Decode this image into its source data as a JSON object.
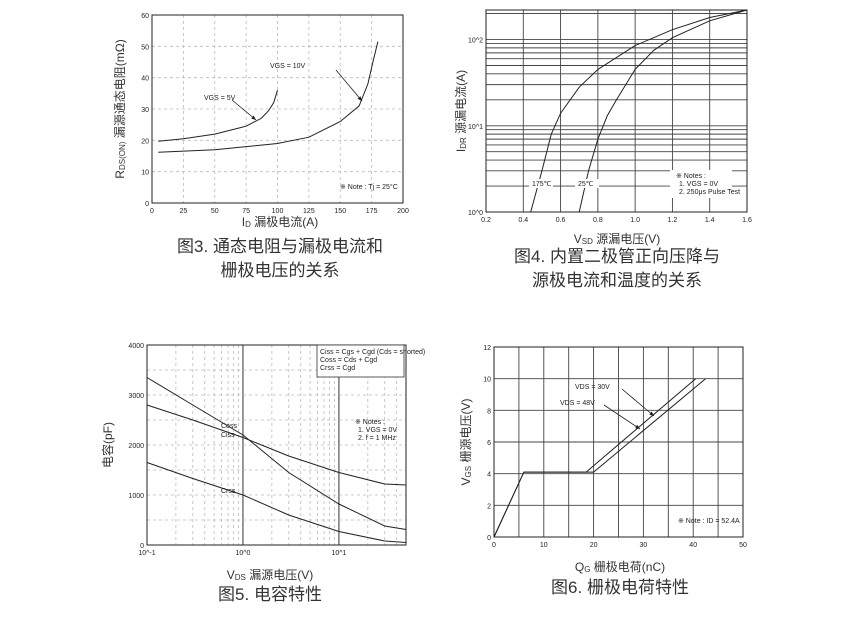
{
  "chart_data": [
    {
      "type": "line",
      "caption": [
        "图3. 通态电阻与漏极电流和",
        "栅极电压的关系"
      ],
      "xlabel": {
        "sym": "I",
        "sub": "D",
        "text": " 漏极电流(A)"
      },
      "ylabel": {
        "sym": "R",
        "sub": "DS(ON)",
        "text": " 漏源通态电阻(mΩ)"
      },
      "xscale": "linear",
      "yscale": "linear",
      "xlim": [
        0,
        200
      ],
      "ylim": [
        0,
        60
      ],
      "xticks": [
        0,
        25,
        50,
        75,
        100,
        125,
        150,
        175,
        200
      ],
      "xtick_labels": [
        "0",
        "25",
        "50",
        "75",
        "100",
        "125",
        "150",
        "175",
        "200"
      ],
      "yticks": [
        0,
        10,
        20,
        30,
        40,
        50,
        60
      ],
      "ytick_labels": [
        "0",
        "10",
        "20",
        "30",
        "40",
        "50",
        "60"
      ],
      "grid": "dashed",
      "note": "※ Note : Tj = 25°C",
      "series": [
        {
          "name": "VGS = 5V",
          "x": [
            5,
            25,
            50,
            75,
            87,
            93,
            97,
            100
          ],
          "y": [
            19.7,
            20.5,
            22,
            24.5,
            27,
            29.5,
            32,
            36
          ]
        },
        {
          "name": "VGS = 10V",
          "x": [
            5,
            50,
            100,
            125,
            150,
            165,
            172,
            176,
            180
          ],
          "y": [
            16.2,
            17,
            19,
            21,
            26,
            31,
            38,
            45,
            51.5
          ]
        }
      ]
    },
    {
      "type": "line",
      "caption": [
        "图4. 内置二极管正向压降与",
        "源极电流和温度的关系"
      ],
      "xlabel": {
        "sym": "V",
        "sub": "SD",
        "text": " 源漏电压(V)"
      },
      "ylabel": {
        "sym": "I",
        "sub": "DR",
        "text": " 源漏电流(A)"
      },
      "xscale": "linear",
      "yscale": "log",
      "xlim": [
        0.2,
        1.6
      ],
      "ylim": [
        1,
        220
      ],
      "xticks": [
        0.2,
        0.4,
        0.6,
        0.8,
        1.0,
        1.2,
        1.4,
        1.6
      ],
      "xtick_labels": [
        "0.2",
        "0.4",
        "0.6",
        "0.8",
        "1.0",
        "1.2",
        "1.4",
        "1.6"
      ],
      "yticks": [
        1,
        10,
        100
      ],
      "ytick_labels": [
        "10^0",
        "10^1",
        "10^2"
      ],
      "grid": "solid",
      "note": [
        "※ Notes :",
        "1. VGS = 0V",
        "2. 250μs Pulse Test"
      ],
      "series": [
        {
          "name": "175℃",
          "x": [
            0.44,
            0.5,
            0.55,
            0.6,
            0.7,
            0.8,
            1.0,
            1.2,
            1.4,
            1.6
          ],
          "y": [
            1,
            3,
            8,
            14,
            28,
            45,
            85,
            130,
            180,
            220
          ]
        },
        {
          "name": "25℃",
          "x": [
            0.7,
            0.75,
            0.8,
            0.85,
            0.9,
            1.0,
            1.1,
            1.2,
            1.4,
            1.6
          ],
          "y": [
            1,
            3,
            7,
            13,
            20,
            45,
            75,
            105,
            165,
            220
          ]
        }
      ]
    },
    {
      "type": "line",
      "caption": [
        "图5. 电容特性"
      ],
      "xlabel": {
        "sym": "V",
        "sub": "DS",
        "text": " 漏源电压(V)"
      },
      "ylabel": {
        "sym": "",
        "sub": "",
        "text": "电容(pF)"
      },
      "xscale": "log",
      "yscale": "linear",
      "xlim": [
        0.1,
        50
      ],
      "ylim": [
        0,
        4000
      ],
      "xticks": [
        0.1,
        1,
        10
      ],
      "xtick_labels": [
        "10^-1",
        "10^0",
        "10^1"
      ],
      "yticks": [
        0,
        1000,
        2000,
        3000,
        4000
      ],
      "ytick_labels": [
        "0",
        "1000",
        "2000",
        "3000",
        "4000"
      ],
      "grid": "dashed",
      "legend": [
        "Ciss = Cgs + Cgd (Cds = shorted)",
        "Coss = Cds + Cgd",
        "Crss = Cgd"
      ],
      "legend_position": "top-right",
      "note": [
        "※ Notes :",
        "1. VGS = 0V",
        "2. f = 1 MHz"
      ],
      "series": [
        {
          "name": "Coss",
          "x": [
            0.1,
            0.3,
            1,
            3,
            10,
            30,
            50
          ],
          "y": [
            3350,
            2800,
            2200,
            1450,
            820,
            380,
            310
          ]
        },
        {
          "name": "Ciss",
          "x": [
            0.1,
            0.3,
            1,
            3,
            10,
            30,
            50
          ],
          "y": [
            2800,
            2500,
            2150,
            1780,
            1450,
            1220,
            1200
          ]
        },
        {
          "name": "Crss",
          "x": [
            0.1,
            0.3,
            1,
            3,
            10,
            30,
            50
          ],
          "y": [
            1650,
            1330,
            1000,
            600,
            270,
            80,
            50
          ]
        }
      ]
    },
    {
      "type": "line",
      "caption": [
        "图6. 栅极电荷特性"
      ],
      "xlabel": {
        "sym": "Q",
        "sub": "G",
        "text": " 栅极电荷(nC)"
      },
      "ylabel": {
        "sym": "V",
        "sub": "GS",
        "text": " 栅源电压(V)"
      },
      "xscale": "linear",
      "yscale": "linear",
      "xlim": [
        0,
        50
      ],
      "ylim": [
        0,
        12
      ],
      "xticks": [
        0,
        10,
        20,
        30,
        40,
        50
      ],
      "xtick_labels": [
        "0",
        "10",
        "20",
        "30",
        "40",
        "50"
      ],
      "yticks": [
        0,
        2,
        4,
        6,
        8,
        10,
        12
      ],
      "ytick_labels": [
        "0",
        "2",
        "4",
        "6",
        "8",
        "10",
        "12"
      ],
      "grid": "solid",
      "note": "※ Note : ID = 52.4A",
      "series": [
        {
          "name": "VDS = 30V",
          "x": [
            0,
            6,
            18.5,
            40.5
          ],
          "y": [
            0,
            4.1,
            4.1,
            10
          ]
        },
        {
          "name": "VDS = 48V",
          "x": [
            0,
            6,
            20,
            42.5
          ],
          "y": [
            0,
            4.1,
            4.1,
            10
          ]
        }
      ]
    }
  ]
}
